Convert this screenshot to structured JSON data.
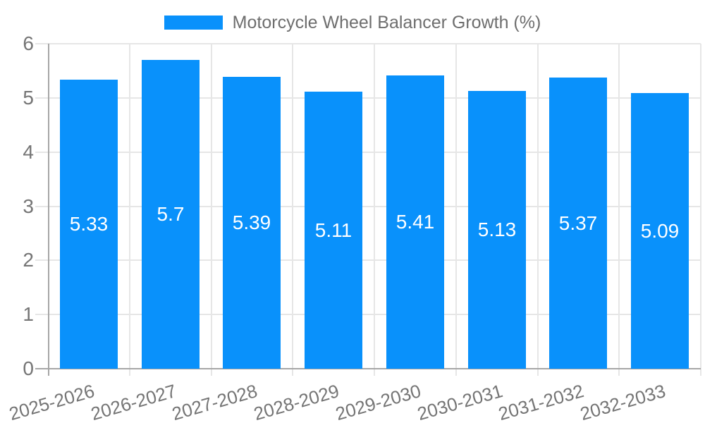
{
  "chart_data": {
    "type": "bar",
    "title": "Motorcycle Wheel Balancer Growth (%)",
    "categories": [
      "2025-2026",
      "2026-2027",
      "2027-2028",
      "2028-2029",
      "2029-2030",
      "2030-2031",
      "2031-2032",
      "2032-2033"
    ],
    "values": [
      5.33,
      5.7,
      5.39,
      5.11,
      5.41,
      5.13,
      5.37,
      5.09
    ],
    "value_labels": [
      "5.33",
      "5.7",
      "5.39",
      "5.11",
      "5.41",
      "5.13",
      "5.37",
      "5.09"
    ],
    "xlabel": "",
    "ylabel": "",
    "ylim": [
      0,
      6
    ],
    "yticks": [
      0,
      1,
      2,
      3,
      4,
      5,
      6
    ],
    "grid": true,
    "legend_position": "top-center",
    "x_label_rotation_deg": -16
  },
  "legend": {
    "label": "Motorcycle Wheel Balancer Growth (%)"
  },
  "colors": {
    "bar": "#0991fb",
    "gridline": "#e6e6e6",
    "axis": "#a6a6a6",
    "tick_label": "#757575",
    "legend_text": "#6e6e6e",
    "bar_value_label": "#ffffff",
    "background": "#ffffff"
  }
}
